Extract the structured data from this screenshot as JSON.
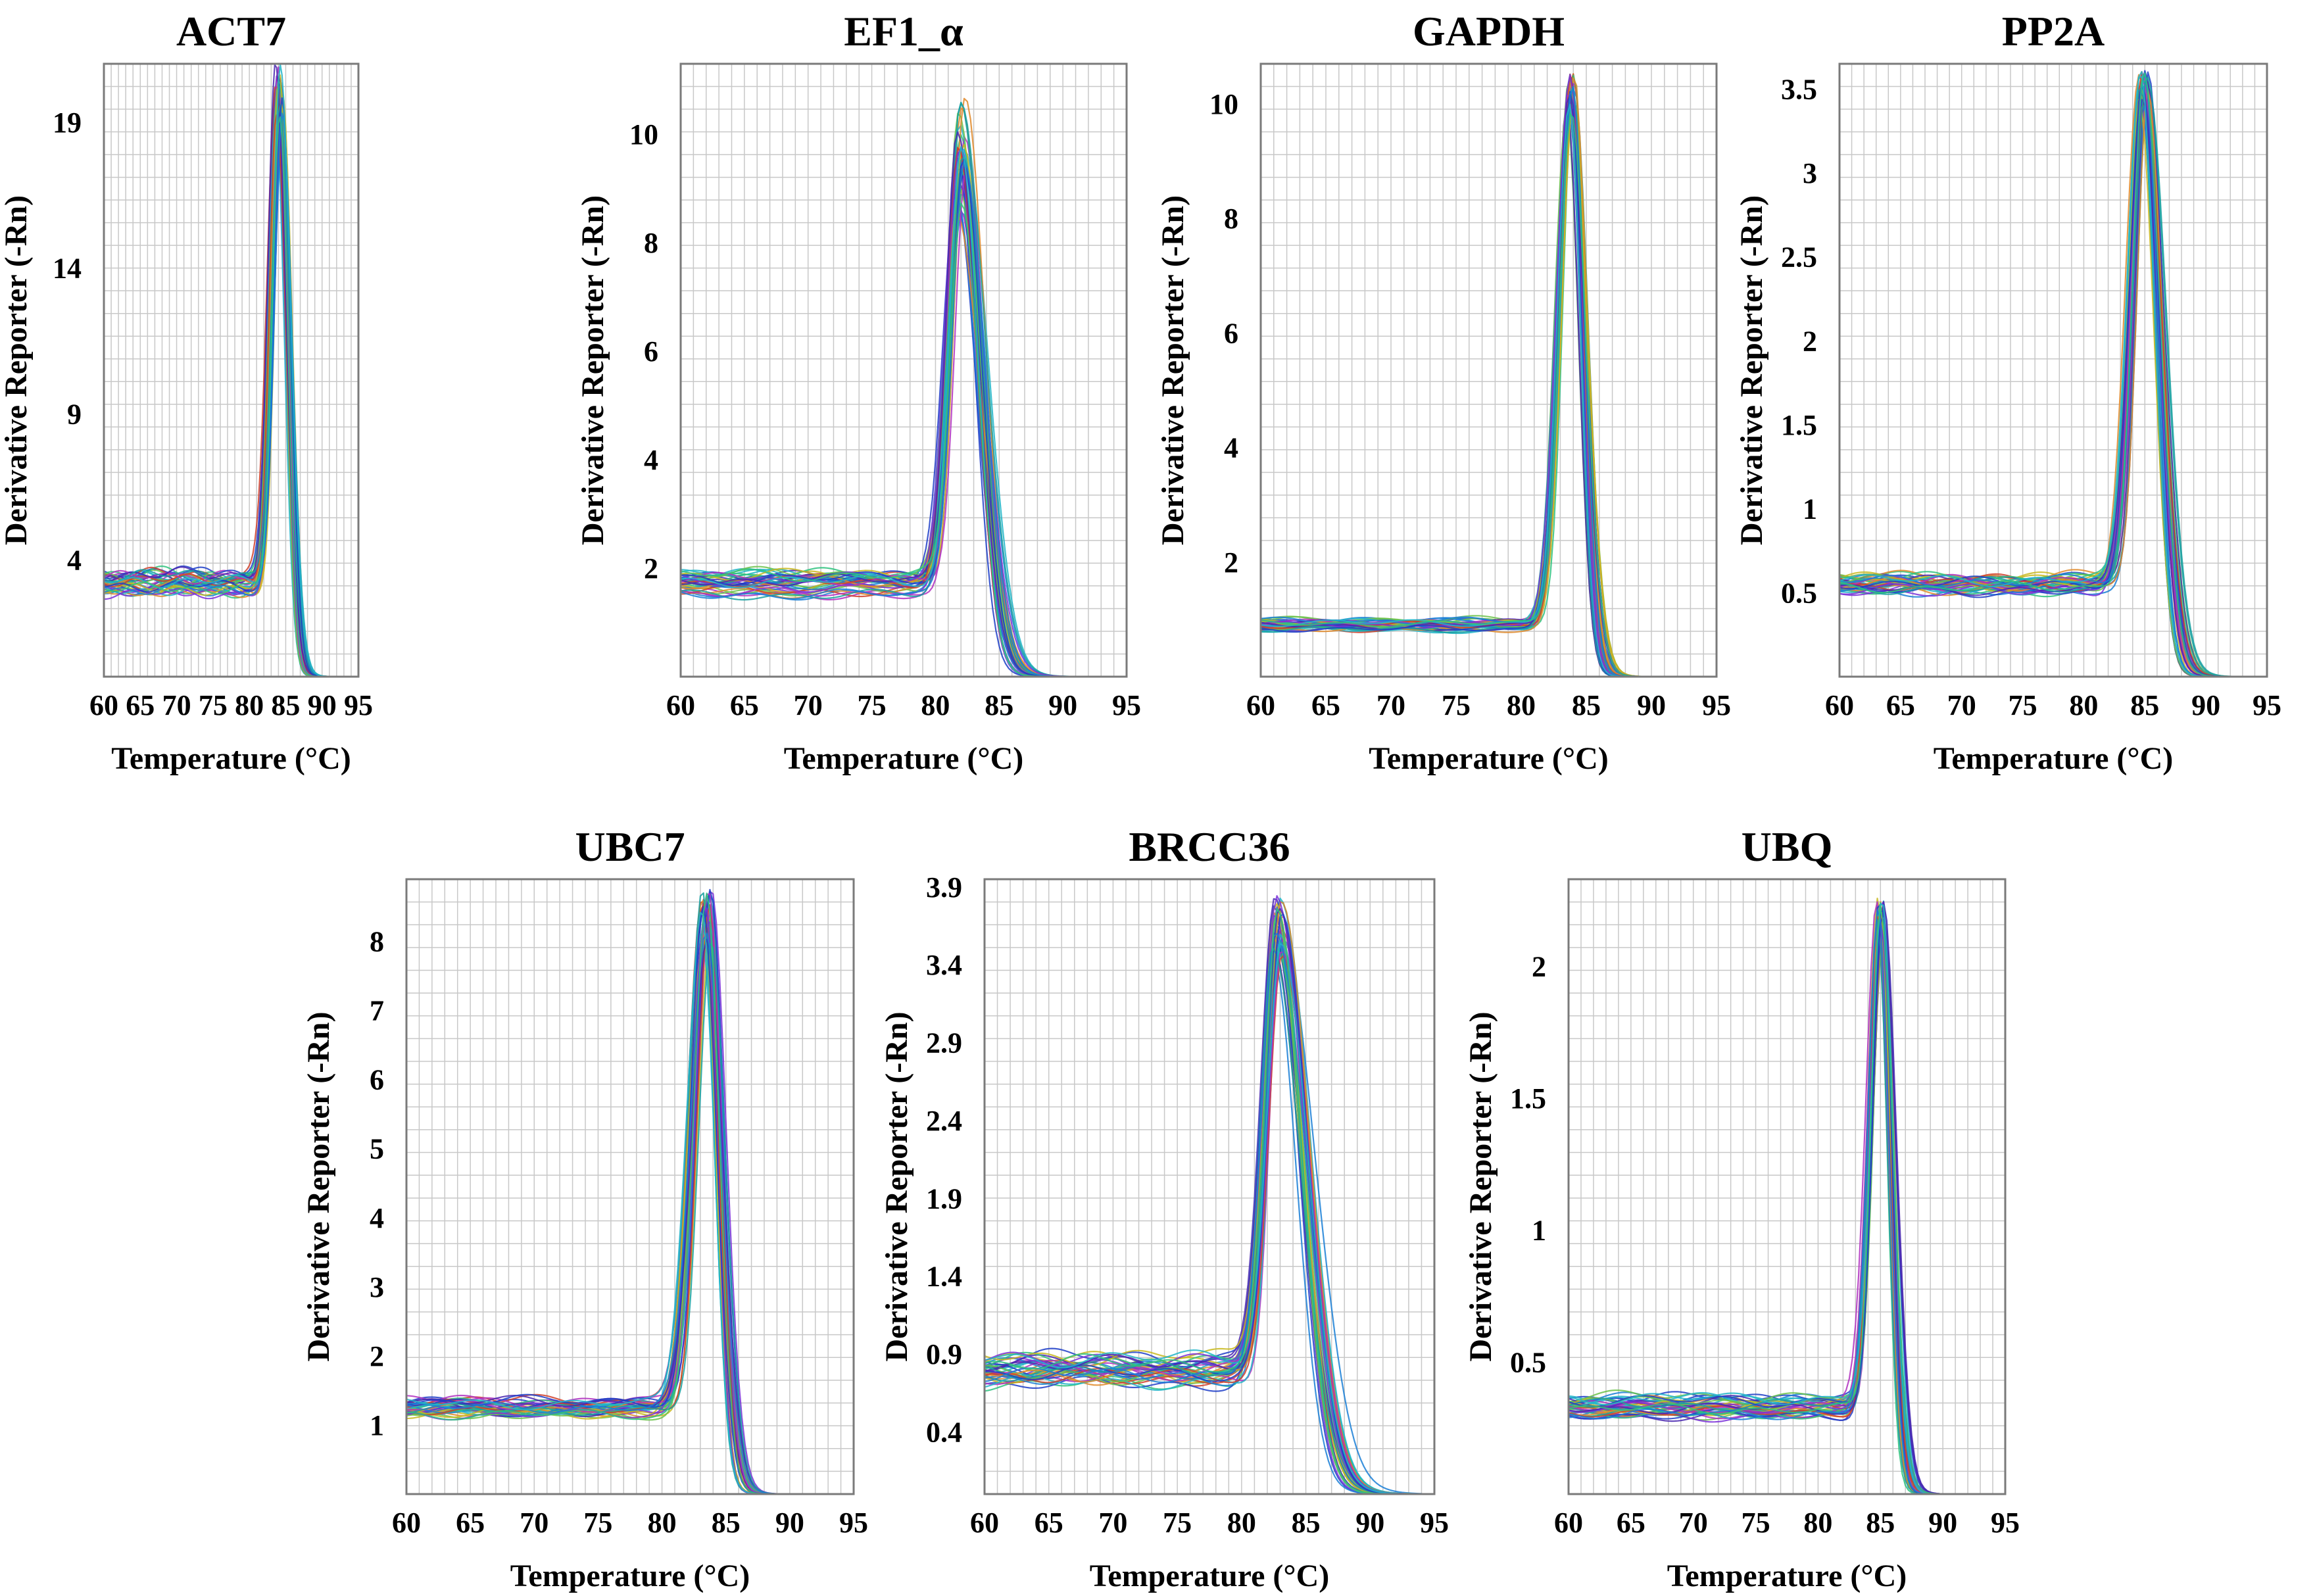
{
  "figure": {
    "xlabel": "Temperature (°C)",
    "ylabel": "Derivative Reporter (-Rn)"
  },
  "colors": {
    "grid": "#c8c8c8",
    "frame": "#7a7a7a",
    "curve_palette": [
      "#2040c8",
      "#1a7fd6",
      "#21b5c8",
      "#2ec27e",
      "#6cc24a",
      "#c8b820",
      "#e08a2a",
      "#d0402a",
      "#b030c0",
      "#7a30d8",
      "#4a28b0",
      "#18a0a0"
    ]
  },
  "chart_data": [
    {
      "type": "line",
      "title": "ACT7",
      "xlabel": "Temperature (°C)",
      "ylabel": "Derivative Reporter (-Rn)",
      "xlim": [
        60,
        95
      ],
      "ylim": [
        0,
        21
      ],
      "x_ticks": [
        60,
        65,
        70,
        75,
        80,
        85,
        90,
        95
      ],
      "y_ticks": [
        4,
        9,
        14,
        19
      ],
      "series_count": 40,
      "baseline": 3.2,
      "baseline_spread": 0.35,
      "peak_temp": 84.1,
      "peak_temp_spread": 0.5,
      "peak_height": 20.0,
      "peak_height_spread": 1.2,
      "rise_width": 1.5,
      "fall_width": 1.5,
      "tail_extent": 93
    },
    {
      "type": "line",
      "title": "EF1_α",
      "xlabel": "Temperature (°C)",
      "ylabel": "Derivative Reporter (-Rn)",
      "xlim": [
        60,
        95
      ],
      "ylim": [
        0,
        11.3
      ],
      "x_ticks": [
        60,
        65,
        70,
        75,
        80,
        85,
        90,
        95
      ],
      "y_ticks": [
        2,
        4,
        6,
        8,
        10
      ],
      "series_count": 40,
      "baseline": 1.7,
      "baseline_spread": 0.2,
      "peak_temp": 82.0,
      "peak_temp_spread": 0.4,
      "peak_height": 9.6,
      "peak_height_spread": 1.1,
      "rise_width": 1.3,
      "fall_width": 2.0,
      "tail_extent": 94
    },
    {
      "type": "line",
      "title": "GAPDH",
      "xlabel": "Temperature (°C)",
      "ylabel": "Derivative Reporter (-Rn)",
      "xlim": [
        60,
        95
      ],
      "ylim": [
        0,
        10.7
      ],
      "x_ticks": [
        60,
        65,
        70,
        75,
        80,
        85,
        90,
        95
      ],
      "y_ticks": [
        2,
        4,
        6,
        8,
        10
      ],
      "series_count": 40,
      "baseline": 0.9,
      "baseline_spread": 0.1,
      "peak_temp": 83.8,
      "peak_temp_spread": 0.3,
      "peak_height": 10.2,
      "peak_height_spread": 0.35,
      "rise_width": 1.3,
      "fall_width": 1.3,
      "tail_extent": 92
    },
    {
      "type": "line",
      "title": "PP2A",
      "xlabel": "Temperature (°C)",
      "ylabel": "Derivative Reporter (-Rn)",
      "xlim": [
        60,
        95
      ],
      "ylim": [
        0,
        3.65
      ],
      "x_ticks": [
        60,
        65,
        70,
        75,
        80,
        85,
        90,
        95
      ],
      "y_ticks": [
        0.5,
        1,
        1.5,
        2,
        2.5,
        3,
        3.5
      ],
      "series_count": 40,
      "baseline": 0.55,
      "baseline_spread": 0.05,
      "peak_temp": 84.9,
      "peak_temp_spread": 0.4,
      "peak_height": 3.5,
      "peak_height_spread": 0.12,
      "rise_width": 1.4,
      "fall_width": 1.6,
      "tail_extent": 94
    },
    {
      "type": "line",
      "title": "UBC7",
      "xlabel": "Temperature (°C)",
      "ylabel": "Derivative Reporter (-Rn)",
      "xlim": [
        60,
        95
      ],
      "ylim": [
        0,
        8.9
      ],
      "x_ticks": [
        60,
        65,
        70,
        75,
        80,
        85,
        90,
        95
      ],
      "y_ticks": [
        1,
        2,
        3,
        4,
        5,
        6,
        7,
        8
      ],
      "series_count": 40,
      "baseline": 1.25,
      "baseline_spread": 0.1,
      "peak_temp": 83.5,
      "peak_temp_spread": 0.4,
      "peak_height": 8.4,
      "peak_height_spread": 0.4,
      "rise_width": 1.5,
      "fall_width": 1.3,
      "tail_extent": 93
    },
    {
      "type": "line",
      "title": "BRCC36",
      "xlabel": "Temperature (°C)",
      "ylabel": "Derivative Reporter (-Rn)",
      "xlim": [
        60,
        95
      ],
      "ylim": [
        0,
        3.95
      ],
      "x_ticks": [
        60,
        65,
        70,
        75,
        80,
        85,
        90,
        95
      ],
      "y_ticks": [
        0.4,
        0.9,
        1.4,
        1.9,
        2.4,
        2.9,
        3.4,
        3.9
      ],
      "series_count": 40,
      "baseline": 0.8,
      "baseline_spread": 0.1,
      "peak_temp": 82.8,
      "peak_temp_spread": 0.4,
      "peak_height": 3.65,
      "peak_height_spread": 0.2,
      "rise_width": 1.4,
      "fall_width": 2.6,
      "tail_extent": 94
    },
    {
      "type": "line",
      "title": "UBQ",
      "xlabel": "Temperature (°C)",
      "ylabel": "Derivative Reporter (-Rn)",
      "xlim": [
        60,
        95
      ],
      "ylim": [
        0,
        2.33
      ],
      "x_ticks": [
        60,
        65,
        70,
        75,
        80,
        85,
        90,
        95
      ],
      "y_ticks": [
        0.5,
        1,
        1.5,
        2
      ],
      "series_count": 40,
      "baseline": 0.33,
      "baseline_spread": 0.04,
      "peak_temp": 85.0,
      "peak_temp_spread": 0.3,
      "peak_height": 2.2,
      "peak_height_spread": 0.07,
      "rise_width": 1.1,
      "fall_width": 1.1,
      "tail_extent": 94
    }
  ]
}
